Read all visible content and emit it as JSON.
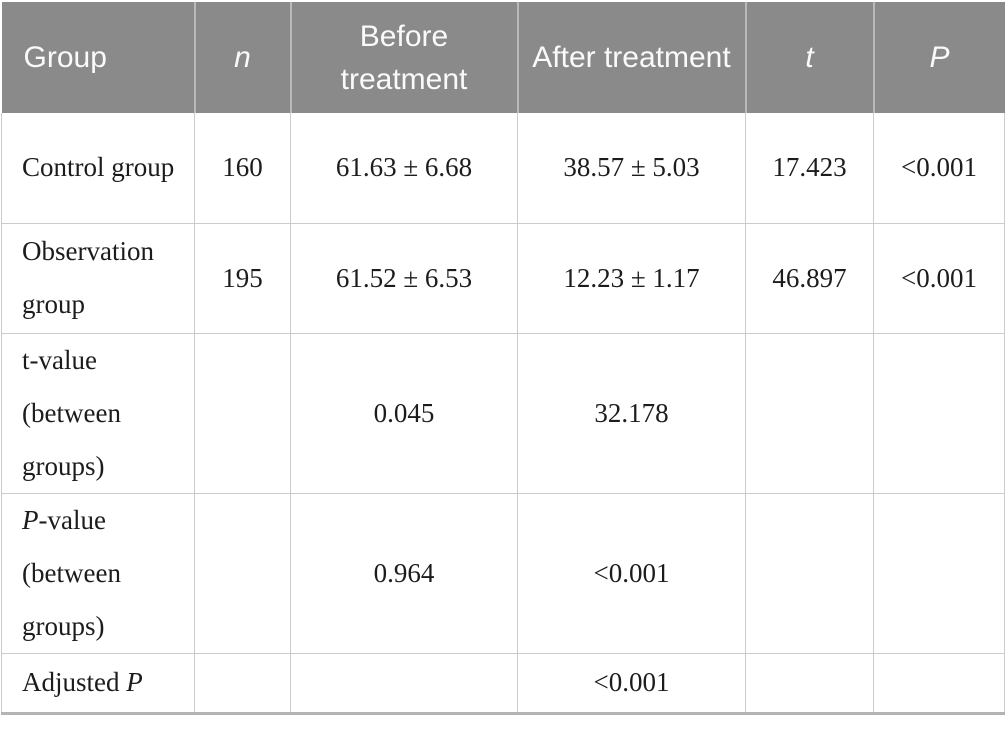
{
  "table": {
    "title": "treatment-comparison-statistics",
    "colors": {
      "header_bg": "#8a8a8a",
      "header_text": "#fafafa",
      "grid_line": "#cccccc",
      "header_separator": "#b9b9b9",
      "bottom_rule": "#b3b3b3",
      "body_text": "#1c1c1c"
    },
    "header": {
      "cells": [
        {
          "name": "column-header-group",
          "segments": [
            {
              "text": "Group",
              "italic": false
            }
          ]
        },
        {
          "name": "column-header-n",
          "segments": [
            {
              "text": "n",
              "italic": true
            }
          ]
        },
        {
          "name": "column-header-before-treatment",
          "segments": [
            {
              "text": "Before treatment",
              "italic": false
            }
          ]
        },
        {
          "name": "column-header-after-treatment",
          "segments": [
            {
              "text": "After treatment",
              "italic": false
            }
          ]
        },
        {
          "name": "column-header-t",
          "segments": [
            {
              "text": "t",
              "italic": true
            }
          ]
        },
        {
          "name": "column-header-p",
          "segments": [
            {
              "text": "P",
              "italic": true
            }
          ]
        }
      ]
    },
    "rows": [
      {
        "cells": [
          {
            "name": "row-label-control-group",
            "segments": [
              {
                "text": "Control group"
              }
            ]
          },
          {
            "name": "cell-n",
            "segments": [
              {
                "text": "160"
              }
            ]
          },
          {
            "name": "cell-before",
            "segments": [
              {
                "text": "61.63 ± 6.68"
              }
            ]
          },
          {
            "name": "cell-after",
            "segments": [
              {
                "text": "38.57 ± 5.03"
              }
            ]
          },
          {
            "name": "cell-t",
            "segments": [
              {
                "text": "17.423"
              }
            ]
          },
          {
            "name": "cell-p",
            "segments": [
              {
                "text": "<0.001"
              }
            ]
          }
        ]
      },
      {
        "cells": [
          {
            "name": "row-label-observation-group",
            "segments": [
              {
                "text": "Observation group"
              }
            ]
          },
          {
            "name": "cell-n",
            "segments": [
              {
                "text": "195"
              }
            ]
          },
          {
            "name": "cell-before",
            "segments": [
              {
                "text": "61.52 ± 6.53"
              }
            ]
          },
          {
            "name": "cell-after",
            "segments": [
              {
                "text": "12.23 ± 1.17"
              }
            ]
          },
          {
            "name": "cell-t",
            "segments": [
              {
                "text": "46.897"
              }
            ]
          },
          {
            "name": "cell-p",
            "segments": [
              {
                "text": "<0.001"
              }
            ]
          }
        ]
      },
      {
        "cells": [
          {
            "name": "row-label-t-value-between-groups",
            "segments": [
              {
                "text": "t-value (between groups)"
              }
            ]
          },
          {
            "name": "cell-n",
            "segments": []
          },
          {
            "name": "cell-before",
            "segments": [
              {
                "text": "0.045"
              }
            ]
          },
          {
            "name": "cell-after",
            "segments": [
              {
                "text": "32.178"
              }
            ]
          },
          {
            "name": "cell-t",
            "segments": []
          },
          {
            "name": "cell-p",
            "segments": []
          }
        ]
      },
      {
        "cells": [
          {
            "name": "row-label-p-value-between-groups",
            "segments": [
              {
                "text": "P",
                "italic": true
              },
              {
                "text": "-value (between groups)"
              }
            ]
          },
          {
            "name": "cell-n",
            "segments": []
          },
          {
            "name": "cell-before",
            "segments": [
              {
                "text": "0.964"
              }
            ]
          },
          {
            "name": "cell-after",
            "segments": [
              {
                "text": "<0.001"
              }
            ]
          },
          {
            "name": "cell-t",
            "segments": []
          },
          {
            "name": "cell-p",
            "segments": []
          }
        ]
      },
      {
        "cells": [
          {
            "name": "row-label-adjusted-p",
            "segments": [
              {
                "text": "Adjusted "
              },
              {
                "text": "P",
                "italic": true
              }
            ]
          },
          {
            "name": "cell-n",
            "segments": []
          },
          {
            "name": "cell-before",
            "segments": []
          },
          {
            "name": "cell-after",
            "segments": [
              {
                "text": "<0.001"
              }
            ]
          },
          {
            "name": "cell-t",
            "segments": []
          },
          {
            "name": "cell-p",
            "segments": []
          }
        ]
      }
    ]
  }
}
